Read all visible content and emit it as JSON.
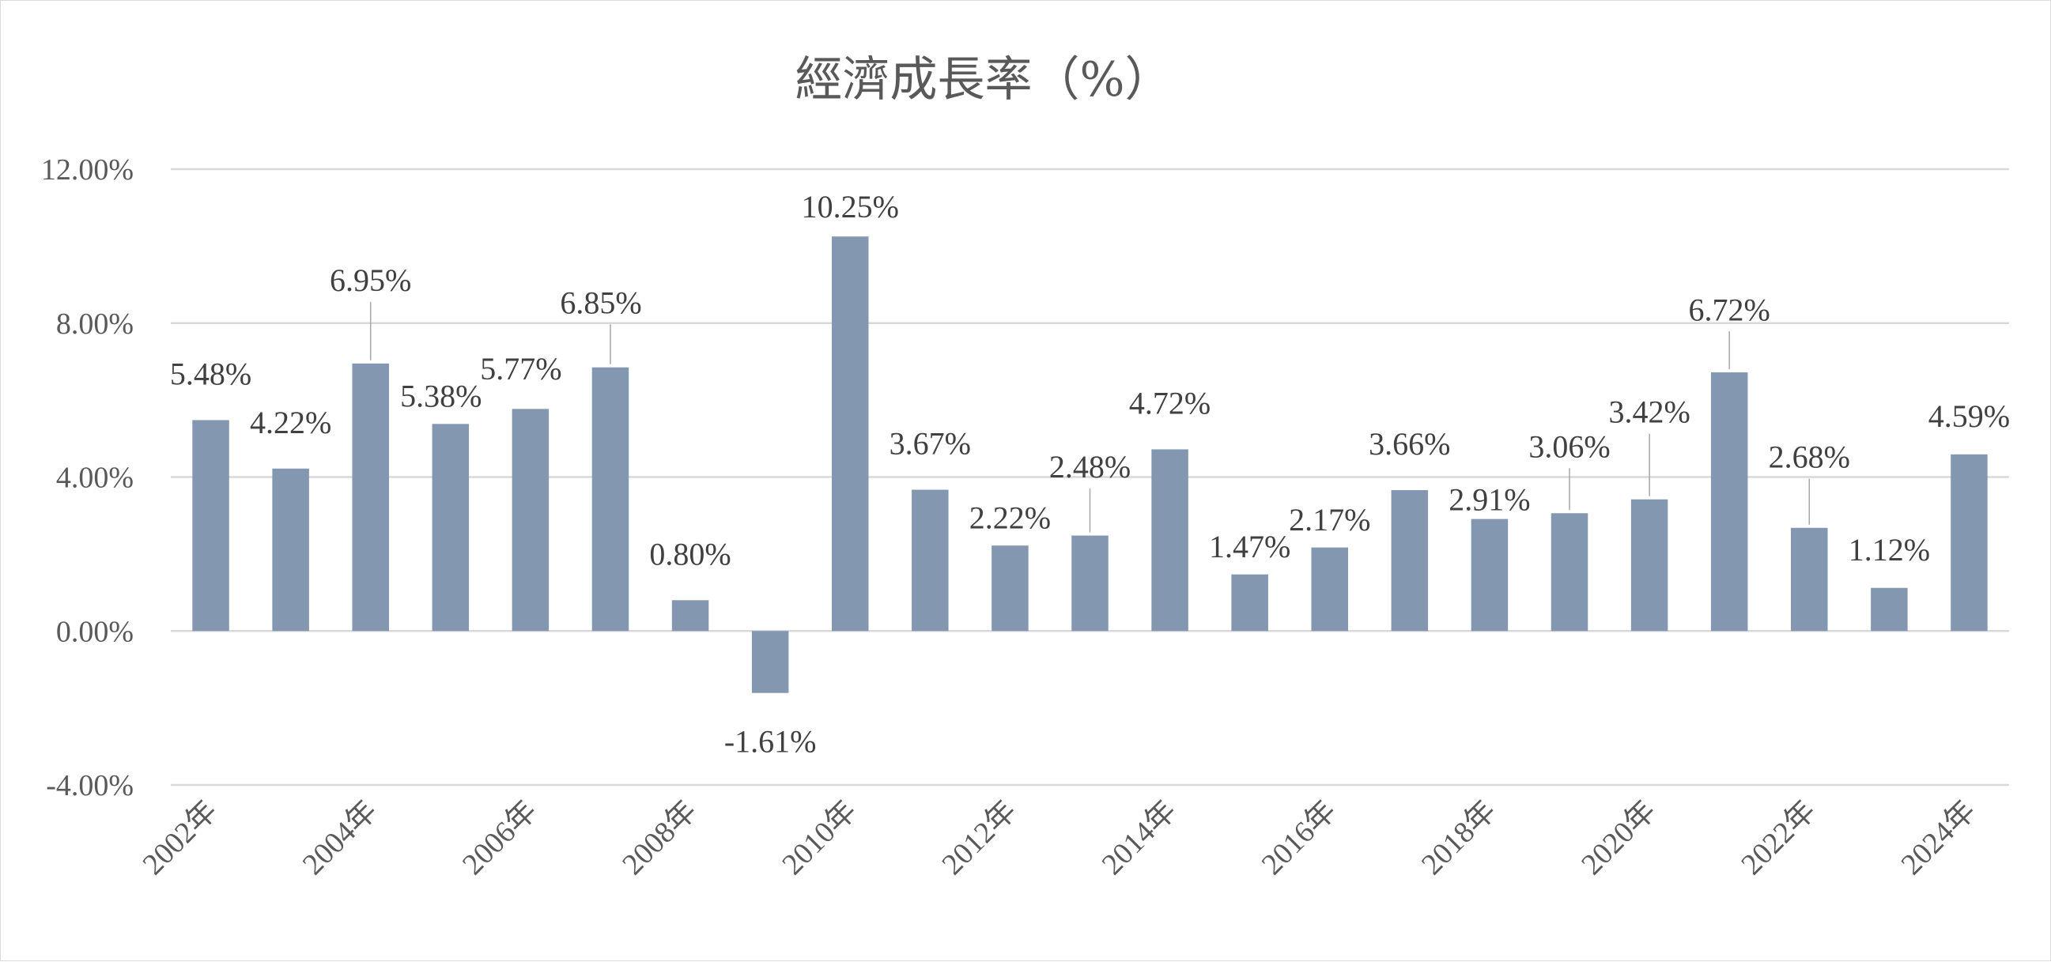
{
  "chart_data": {
    "type": "bar",
    "title": "經濟成長率（%）",
    "xlabel": "",
    "ylabel": "",
    "ylim": [
      -4,
      12
    ],
    "y_ticks": [
      12,
      8,
      4,
      0,
      -4
    ],
    "y_tick_labels": [
      "12.00%",
      "8.00%",
      "4.00%",
      "0.00%",
      "-4.00%"
    ],
    "categories": [
      "2002年",
      "2003年",
      "2004年",
      "2005年",
      "2006年",
      "2007年",
      "2008年",
      "2009年",
      "2010年",
      "2011年",
      "2012年",
      "2013年",
      "2014年",
      "2015年",
      "2016年",
      "2017年",
      "2018年",
      "2019年",
      "2020年",
      "2021年",
      "2022年",
      "2023年",
      "2024年"
    ],
    "x_tick_labels_shown": [
      "2002年",
      "2004年",
      "2006年",
      "2008年",
      "2010年",
      "2012年",
      "2014年",
      "2016年",
      "2018年",
      "2020年",
      "2022年",
      "2024年"
    ],
    "values": [
      5.48,
      4.22,
      6.95,
      5.38,
      5.77,
      6.85,
      0.8,
      -1.61,
      10.25,
      3.67,
      2.22,
      2.48,
      4.72,
      1.47,
      2.17,
      3.66,
      2.91,
      3.06,
      3.42,
      6.72,
      2.68,
      1.12,
      4.59
    ],
    "data_labels": [
      "5.48%",
      "4.22%",
      "6.95%",
      "5.38%",
      "5.77%",
      "6.85%",
      "0.80%",
      "-1.61%",
      "10.25%",
      "3.67%",
      "2.22%",
      "2.48%",
      "4.72%",
      "1.47%",
      "2.17%",
      "3.66%",
      "2.91%",
      "3.06%",
      "3.42%",
      "6.72%",
      "2.68%",
      "1.12%",
      "4.59%"
    ],
    "grid": true,
    "legend": "none",
    "colors": {
      "bar": "#8497b0",
      "grid": "#d9d9d9",
      "text": "#595959"
    }
  }
}
